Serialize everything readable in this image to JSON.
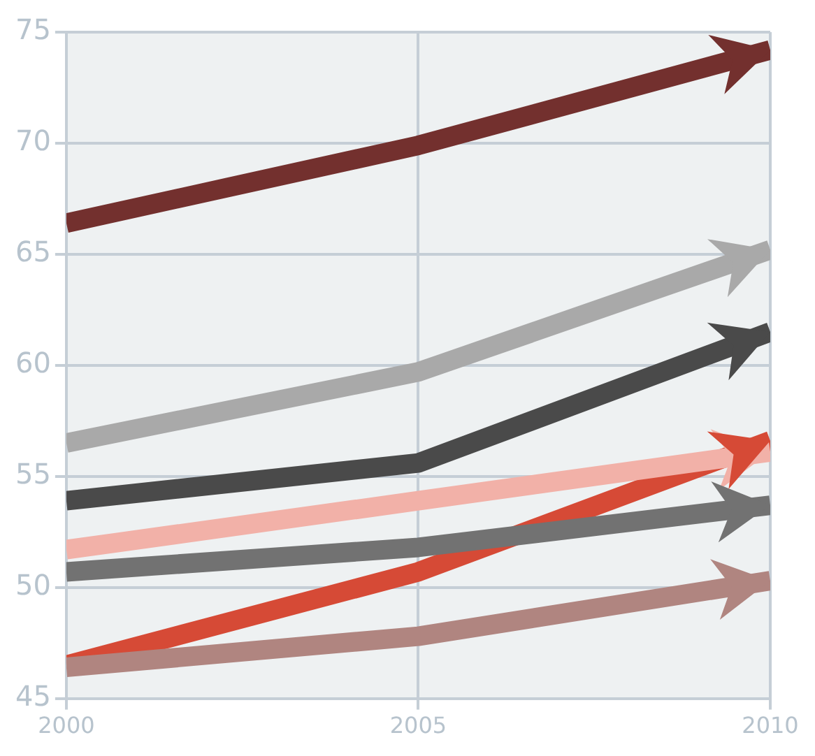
{
  "chart_data": {
    "type": "line",
    "x": [
      2000,
      2005,
      2010
    ],
    "xlim": [
      2000,
      2010
    ],
    "xticks": [
      2000,
      2005,
      2010
    ],
    "ylim": [
      45,
      75
    ],
    "yticks": [
      45,
      50,
      55,
      60,
      65,
      70,
      75
    ],
    "grid": true,
    "marker": "none",
    "line_style": "solid",
    "legend": false,
    "series": [
      {
        "color": "#73302e",
        "values": [
          66.4,
          69.9,
          74.2
        ]
      },
      {
        "color": "#a9a9a9",
        "values": [
          56.5,
          59.7,
          65.2
        ]
      },
      {
        "color": "#4a4a4a",
        "values": [
          53.9,
          55.6,
          61.5
        ]
      },
      {
        "color": "#f2b1a8",
        "values": [
          51.7,
          53.9,
          56.1
        ]
      },
      {
        "color": "#727272",
        "values": [
          50.7,
          51.8,
          53.7
        ]
      },
      {
        "color": "#b08580",
        "values": [
          46.4,
          47.8,
          50.3
        ]
      },
      {
        "color": "#d64a36",
        "values": [
          46.5,
          50.7,
          56.6
        ]
      }
    ]
  }
}
